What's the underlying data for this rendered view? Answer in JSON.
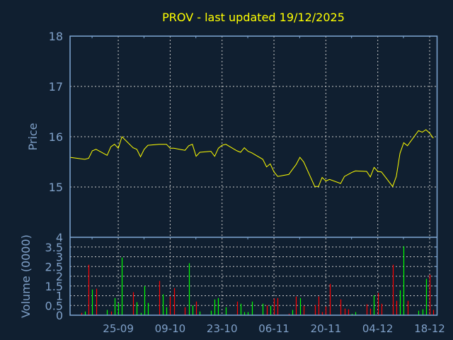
{
  "colors": {
    "background": "#101f30",
    "frame": "#7fa7d4",
    "text": "#7fa0c8",
    "title": "#ffff00",
    "price_line": "#ffff00",
    "vol_up": "#00ff00",
    "vol_down": "#ff0000",
    "grid": "#c8c8c8"
  },
  "chart_data": [
    {
      "type": "line",
      "title": "PROV - last updated 19/12/2025",
      "ylabel": "Price",
      "xlabel": "",
      "ylim": [
        14,
        18
      ],
      "yticks": [
        "18",
        "17",
        "16",
        "15"
      ],
      "xlim": [
        "2025-09-12",
        "2025-12-20"
      ],
      "xtick_labels": [
        "25-09",
        "09-10",
        "23-10",
        "06-11",
        "20-11",
        "04-12",
        "18-12"
      ],
      "xtick_dates": [
        "2025-09-25",
        "2025-10-09",
        "2025-10-23",
        "2025-11-06",
        "2025-11-20",
        "2025-12-04",
        "2025-12-18"
      ],
      "grid": true,
      "series": [
        {
          "x": [
            "2025-09-12",
            "2025-09-15",
            "2025-09-16",
            "2025-09-17",
            "2025-09-18",
            "2025-09-19",
            "2025-09-22",
            "2025-09-23",
            "2025-09-24",
            "2025-09-25",
            "2025-09-26",
            "2025-09-29",
            "2025-09-30",
            "2025-10-01",
            "2025-10-02",
            "2025-10-03",
            "2025-10-06",
            "2025-10-07",
            "2025-10-08",
            "2025-10-09",
            "2025-10-10",
            "2025-10-13",
            "2025-10-14",
            "2025-10-15",
            "2025-10-16",
            "2025-10-17",
            "2025-10-20",
            "2025-10-21",
            "2025-10-22",
            "2025-10-23",
            "2025-10-24",
            "2025-10-27",
            "2025-10-28",
            "2025-10-29",
            "2025-10-30",
            "2025-10-31",
            "2025-11-03",
            "2025-11-04",
            "2025-11-05",
            "2025-11-06",
            "2025-11-07",
            "2025-11-10",
            "2025-11-11",
            "2025-11-12",
            "2025-11-13",
            "2025-11-14",
            "2025-11-17",
            "2025-11-18",
            "2025-11-19",
            "2025-11-20",
            "2025-11-21",
            "2025-11-24",
            "2025-11-25",
            "2025-11-26",
            "2025-11-27",
            "2025-11-28",
            "2025-12-01",
            "2025-12-02",
            "2025-12-03",
            "2025-12-04",
            "2025-12-05",
            "2025-12-08",
            "2025-12-09",
            "2025-12-10",
            "2025-12-11",
            "2025-12-12",
            "2025-12-15",
            "2025-12-16",
            "2025-12-17",
            "2025-12-18",
            "2025-12-19"
          ],
          "y": [
            15.59,
            15.56,
            15.55,
            15.57,
            15.72,
            15.75,
            15.63,
            15.8,
            15.85,
            15.77,
            16.0,
            15.78,
            15.75,
            15.6,
            15.75,
            15.83,
            15.85,
            15.85,
            15.85,
            15.77,
            15.77,
            15.73,
            15.82,
            15.85,
            15.61,
            15.69,
            15.71,
            15.61,
            15.77,
            15.83,
            15.85,
            15.72,
            15.69,
            15.78,
            15.71,
            15.68,
            15.55,
            15.4,
            15.46,
            15.3,
            15.21,
            15.25,
            15.35,
            15.45,
            15.59,
            15.5,
            15.01,
            15.01,
            15.19,
            15.12,
            15.15,
            15.07,
            15.21,
            15.25,
            15.29,
            15.32,
            15.31,
            15.2,
            15.39,
            15.31,
            15.3,
            15.01,
            15.21,
            15.67,
            15.88,
            15.82,
            16.12,
            16.09,
            16.14,
            16.07,
            15.97
          ]
        }
      ]
    },
    {
      "type": "bar",
      "ylabel": "Volume (0000)",
      "ylim": [
        0,
        4
      ],
      "yticks": [
        "0",
        "0.5",
        "1",
        "1.5",
        "2",
        "2.5",
        "3",
        "3.5",
        "4"
      ],
      "grid": true,
      "bars": [
        {
          "x": "2025-09-15",
          "v": 0.12,
          "dir": "down"
        },
        {
          "x": "2025-09-16",
          "v": 0.19,
          "dir": "up"
        },
        {
          "x": "2025-09-17",
          "v": 2.59,
          "dir": "down"
        },
        {
          "x": "2025-09-18",
          "v": 1.32,
          "dir": "up"
        },
        {
          "x": "2025-09-19",
          "v": 1.36,
          "dir": "down"
        },
        {
          "x": "2025-09-22",
          "v": 0.27,
          "dir": "up"
        },
        {
          "x": "2025-09-23",
          "v": 0.19,
          "dir": "down"
        },
        {
          "x": "2025-09-24",
          "v": 0.88,
          "dir": "up"
        },
        {
          "x": "2025-09-25",
          "v": 0.62,
          "dir": "up"
        },
        {
          "x": "2025-09-26",
          "v": 2.96,
          "dir": "up"
        },
        {
          "x": "2025-09-29",
          "v": 1.18,
          "dir": "down"
        },
        {
          "x": "2025-09-30",
          "v": 0.67,
          "dir": "up"
        },
        {
          "x": "2025-10-01",
          "v": 0.12,
          "dir": "up"
        },
        {
          "x": "2025-10-02",
          "v": 1.5,
          "dir": "up"
        },
        {
          "x": "2025-10-03",
          "v": 0.63,
          "dir": "up"
        },
        {
          "x": "2025-10-06",
          "v": 1.76,
          "dir": "down"
        },
        {
          "x": "2025-10-07",
          "v": 1.07,
          "dir": "up"
        },
        {
          "x": "2025-10-08",
          "v": 0.41,
          "dir": "up"
        },
        {
          "x": "2025-10-09",
          "v": 0.96,
          "dir": "down"
        },
        {
          "x": "2025-10-10",
          "v": 1.39,
          "dir": "down"
        },
        {
          "x": "2025-10-13",
          "v": 0.41,
          "dir": "down"
        },
        {
          "x": "2025-10-14",
          "v": 2.67,
          "dir": "up"
        },
        {
          "x": "2025-10-15",
          "v": 0.5,
          "dir": "up"
        },
        {
          "x": "2025-10-16",
          "v": 0.7,
          "dir": "down"
        },
        {
          "x": "2025-10-17",
          "v": 0.19,
          "dir": "up"
        },
        {
          "x": "2025-10-20",
          "v": 0.23,
          "dir": "up"
        },
        {
          "x": "2025-10-21",
          "v": 0.81,
          "dir": "up"
        },
        {
          "x": "2025-10-22",
          "v": 0.88,
          "dir": "up"
        },
        {
          "x": "2025-10-24",
          "v": 0.41,
          "dir": "up"
        },
        {
          "x": "2025-10-27",
          "v": 0.7,
          "dir": "down"
        },
        {
          "x": "2025-10-28",
          "v": 0.59,
          "dir": "up"
        },
        {
          "x": "2025-10-29",
          "v": 0.16,
          "dir": "up"
        },
        {
          "x": "2025-10-30",
          "v": 0.16,
          "dir": "up"
        },
        {
          "x": "2025-10-31",
          "v": 0.7,
          "dir": "up"
        },
        {
          "x": "2025-11-03",
          "v": 0.59,
          "dir": "up"
        },
        {
          "x": "2025-11-04",
          "v": 0.5,
          "dir": "down"
        },
        {
          "x": "2025-11-05",
          "v": 0.48,
          "dir": "up"
        },
        {
          "x": "2025-11-06",
          "v": 0.86,
          "dir": "down"
        },
        {
          "x": "2025-11-07",
          "v": 0.88,
          "dir": "down"
        },
        {
          "x": "2025-11-10",
          "v": 0.08,
          "dir": "down"
        },
        {
          "x": "2025-11-11",
          "v": 0.27,
          "dir": "up"
        },
        {
          "x": "2025-11-12",
          "v": 0.96,
          "dir": "down"
        },
        {
          "x": "2025-11-13",
          "v": 0.88,
          "dir": "up"
        },
        {
          "x": "2025-11-14",
          "v": 0.48,
          "dir": "down"
        },
        {
          "x": "2025-11-17",
          "v": 0.52,
          "dir": "down"
        },
        {
          "x": "2025-11-18",
          "v": 0.96,
          "dir": "down"
        },
        {
          "x": "2025-11-19",
          "v": 0.16,
          "dir": "down"
        },
        {
          "x": "2025-11-20",
          "v": 0.45,
          "dir": "down"
        },
        {
          "x": "2025-11-21",
          "v": 1.61,
          "dir": "down"
        },
        {
          "x": "2025-11-24",
          "v": 0.81,
          "dir": "down"
        },
        {
          "x": "2025-11-25",
          "v": 0.34,
          "dir": "down"
        },
        {
          "x": "2025-11-26",
          "v": 0.3,
          "dir": "down"
        },
        {
          "x": "2025-11-27",
          "v": 0.07,
          "dir": "up"
        },
        {
          "x": "2025-11-28",
          "v": 0.16,
          "dir": "up"
        },
        {
          "x": "2025-12-01",
          "v": 0.56,
          "dir": "down"
        },
        {
          "x": "2025-12-02",
          "v": 0.34,
          "dir": "down"
        },
        {
          "x": "2025-12-03",
          "v": 1.02,
          "dir": "up"
        },
        {
          "x": "2025-12-04",
          "v": 1.14,
          "dir": "down"
        },
        {
          "x": "2025-12-05",
          "v": 0.59,
          "dir": "down"
        },
        {
          "x": "2025-12-08",
          "v": 2.59,
          "dir": "down"
        },
        {
          "x": "2025-12-09",
          "v": 0.74,
          "dir": "down"
        },
        {
          "x": "2025-12-10",
          "v": 1.28,
          "dir": "up"
        },
        {
          "x": "2025-12-11",
          "v": 3.54,
          "dir": "up"
        },
        {
          "x": "2025-12-12",
          "v": 0.74,
          "dir": "down"
        },
        {
          "x": "2025-12-15",
          "v": 0.23,
          "dir": "up"
        },
        {
          "x": "2025-12-16",
          "v": 0.3,
          "dir": "up"
        },
        {
          "x": "2025-12-17",
          "v": 1.87,
          "dir": "up"
        },
        {
          "x": "2025-12-18",
          "v": 2.08,
          "dir": "down"
        },
        {
          "x": "2025-12-19",
          "v": 0.27,
          "dir": "down"
        }
      ]
    }
  ]
}
